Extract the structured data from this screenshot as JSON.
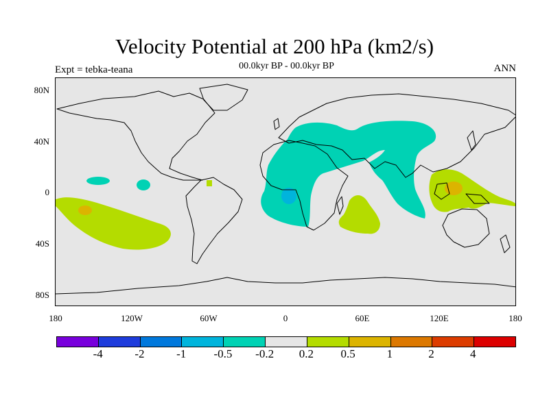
{
  "header": {
    "title": "Velocity Potential at 200 hPa (km2/s)",
    "subtitle": "00.0kyr BP - 00.0kyr BP",
    "expt_label": "Expt = tebka-teana",
    "period_label": "ANN"
  },
  "map": {
    "projection": "cylindrical equidistant",
    "lon_range": [
      -180,
      180
    ],
    "lat_range": [
      -90,
      90
    ],
    "background_color": "#e6e6e6",
    "y_ticks": [
      "80N",
      "40N",
      "0",
      "40S",
      "80S"
    ],
    "x_ticks": [
      "180",
      "120W",
      "60W",
      "0",
      "60E",
      "120E",
      "180"
    ],
    "fields": [
      {
        "region": "Africa-Arabia-Eurasia",
        "category": "-0.5 to -0.2",
        "color": "#00d2b4"
      },
      {
        "region": "Gulf of Guinea",
        "category": "-1 to -0.5",
        "color": "#00b4dc"
      },
      {
        "region": "Eastern tropical Pacific (small patches)",
        "category": "-0.5 to -0.2",
        "color": "#00d2b4"
      },
      {
        "region": "South Pacific",
        "category": "0.2 to 0.5",
        "color": "#b4dc00"
      },
      {
        "region": "Maritime Continent",
        "category": "0.2 to 0.5",
        "color": "#b4dc00"
      },
      {
        "region": "Southern Africa / Mozambique Channel",
        "category": "0.2 to 0.5",
        "color": "#b4dc00"
      },
      {
        "region": "Maritime Continent core",
        "category": "0.5 to 1",
        "color": "#dcb400"
      }
    ]
  },
  "colorbar": {
    "colors": [
      "#7800dc",
      "#1e3cdc",
      "#0078dc",
      "#00b4dc",
      "#00d2b4",
      "#e6e6e6",
      "#b4dc00",
      "#dcb400",
      "#dc7800",
      "#dc3c00",
      "#dc0000"
    ],
    "labels": [
      "-4",
      "-2",
      "-1",
      "-0.5",
      "-0.2",
      "0.2",
      "0.5",
      "1",
      "2",
      "4"
    ]
  }
}
